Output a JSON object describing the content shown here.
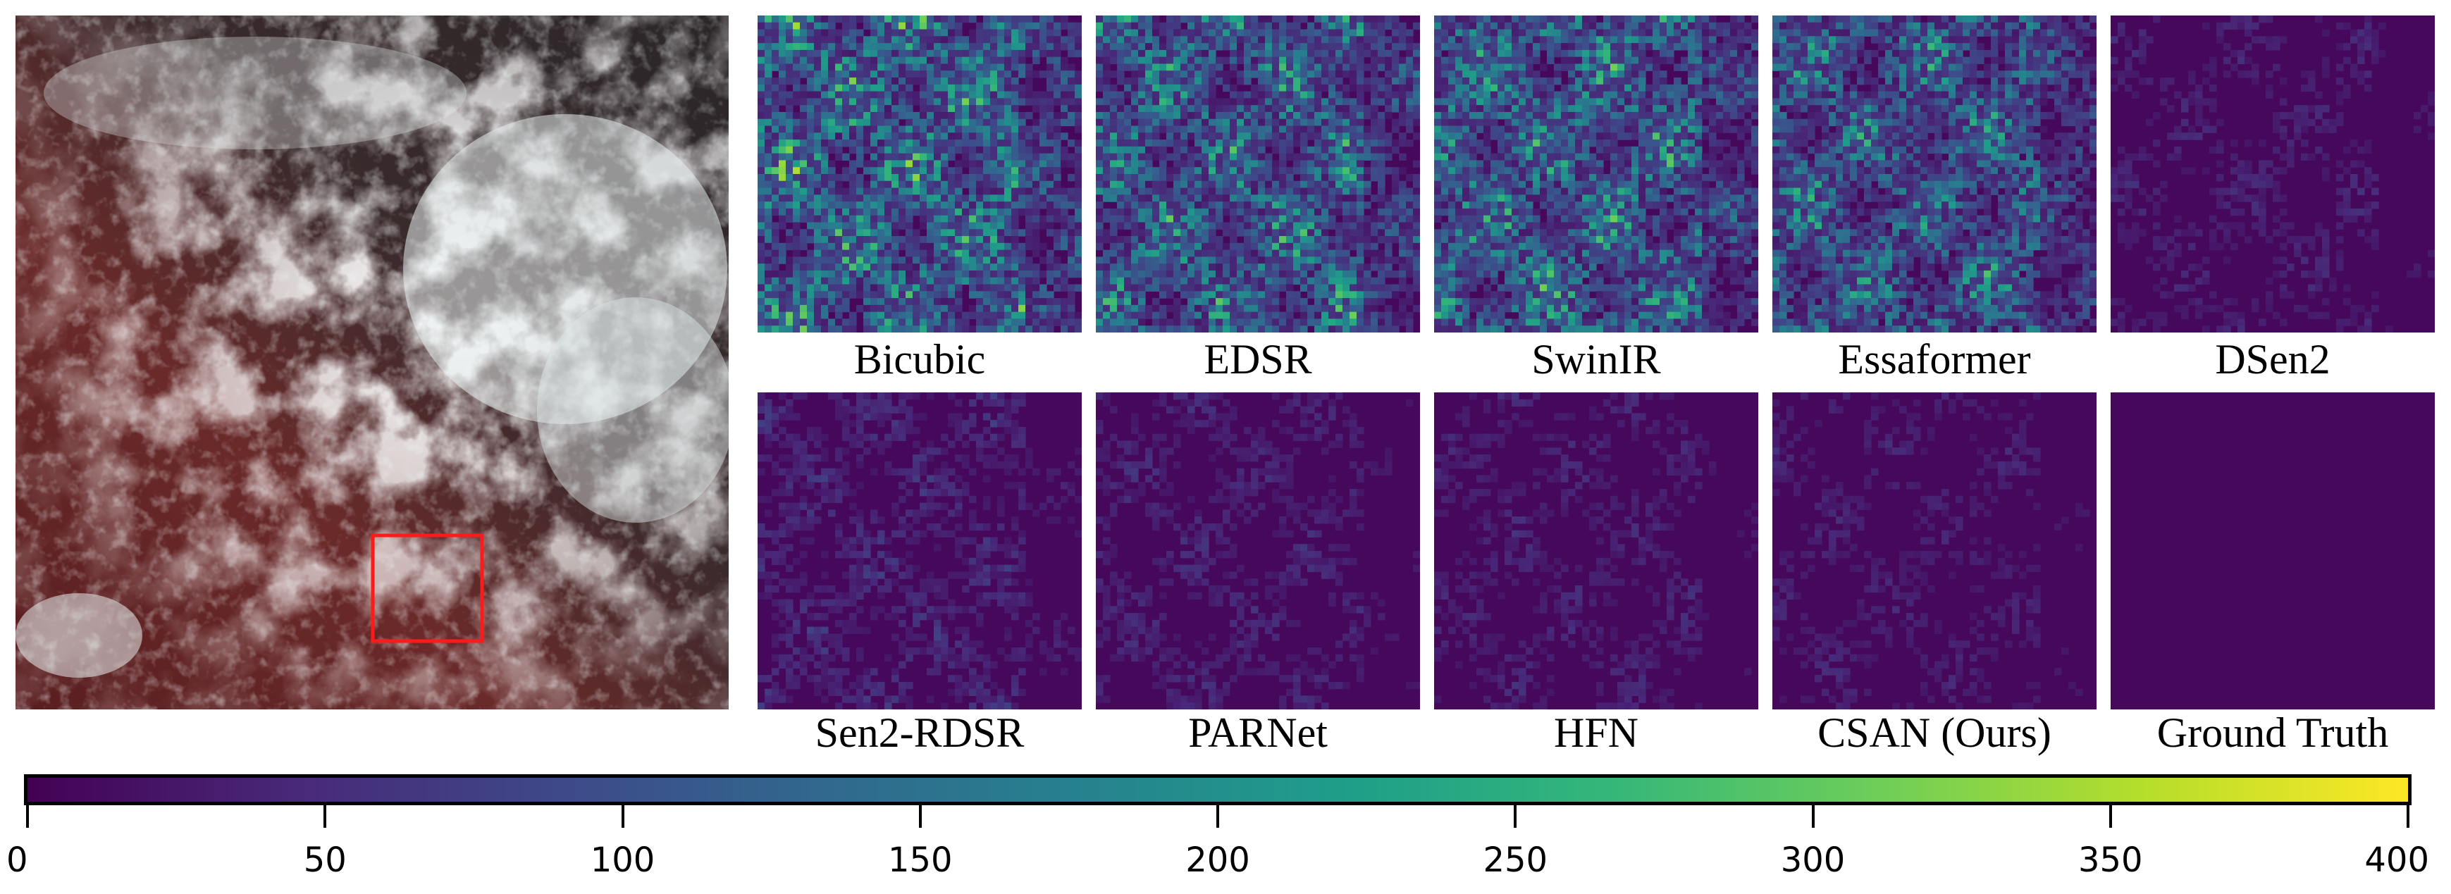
{
  "figure": {
    "satellite_image": {
      "name": "satellite-rgb-composite",
      "highlight_box_color": "#ff1a1a"
    },
    "colormap": "viridis",
    "colormap_stops": [
      "#440154",
      "#482878",
      "#3e4989",
      "#31688e",
      "#26828e",
      "#1f9e89",
      "#35b779",
      "#6ece58",
      "#b5de2b",
      "#fde725"
    ],
    "panels": [
      {
        "label": "Bicubic",
        "intensity": 0.95
      },
      {
        "label": "EDSR",
        "intensity": 0.85
      },
      {
        "label": "SwinIR",
        "intensity": 0.88
      },
      {
        "label": "Essaformer",
        "intensity": 0.78
      },
      {
        "label": "DSen2",
        "intensity": 0.16
      },
      {
        "label": "Sen2-RDSR",
        "intensity": 0.22
      },
      {
        "label": "PARNet",
        "intensity": 0.18
      },
      {
        "label": "HFN",
        "intensity": 0.17
      },
      {
        "label": "CSAN (Ours)",
        "intensity": 0.15
      },
      {
        "label": "Ground Truth",
        "intensity": 0.0
      }
    ],
    "colorbar": {
      "min": 0,
      "max": 400,
      "ticks": [
        "0",
        "50",
        "100",
        "150",
        "200",
        "250",
        "300",
        "350",
        "400"
      ]
    }
  }
}
